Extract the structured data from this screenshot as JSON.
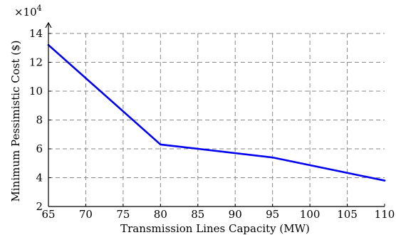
{
  "chart_data": {
    "type": "line",
    "xlabel": "Transmission Lines Capacity (MW)",
    "ylabel": "Minimum Pessimistic Cost ($)",
    "y_multiplier_label": "×10",
    "y_multiplier_exponent": "4",
    "xlim": [
      65,
      110
    ],
    "ylim": [
      2,
      14
    ],
    "x_ticks": [
      65,
      70,
      75,
      80,
      85,
      90,
      95,
      100,
      105,
      110
    ],
    "x_tick_labels": [
      "65",
      "70",
      "75",
      "80",
      "85",
      "90",
      "95",
      "100",
      "105",
      "110"
    ],
    "y_ticks": [
      2,
      4,
      6,
      8,
      10,
      12,
      14
    ],
    "y_tick_labels": [
      "2",
      "4",
      "6",
      "8",
      "10",
      "12",
      "14"
    ],
    "grid": true,
    "series": [
      {
        "color": "#0000ee",
        "x": [
          65,
          80,
          95,
          110
        ],
        "y": [
          13.2,
          6.3,
          5.4,
          3.8
        ]
      }
    ]
  }
}
